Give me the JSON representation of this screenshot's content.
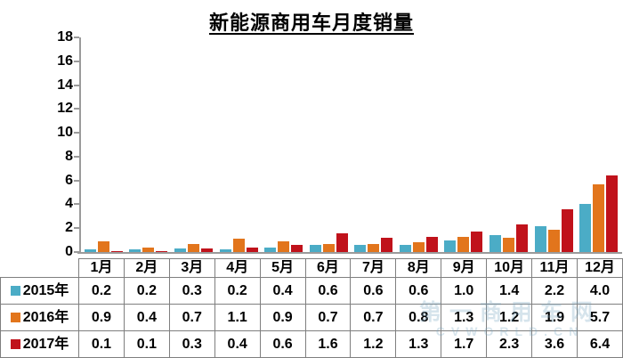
{
  "chart_data": {
    "type": "bar",
    "title": "新能源商用车月度销量",
    "categories": [
      "1月",
      "2月",
      "3月",
      "4月",
      "5月",
      "6月",
      "7月",
      "8月",
      "9月",
      "10月",
      "11月",
      "12月"
    ],
    "series": [
      {
        "name": "2015年",
        "color": "#4BACC6",
        "values": [
          0.2,
          0.2,
          0.3,
          0.2,
          0.4,
          0.6,
          0.6,
          0.6,
          1.0,
          1.4,
          2.2,
          4.0
        ]
      },
      {
        "name": "2016年",
        "color": "#E2751C",
        "values": [
          0.9,
          0.4,
          0.7,
          1.1,
          0.9,
          0.7,
          0.7,
          0.8,
          1.3,
          1.2,
          1.9,
          5.7
        ]
      },
      {
        "name": "2017年",
        "color": "#C0121B",
        "values": [
          0.1,
          0.1,
          0.3,
          0.4,
          0.6,
          1.6,
          1.2,
          1.3,
          1.7,
          2.3,
          3.6,
          6.4
        ]
      }
    ],
    "ylim": [
      0,
      18
    ],
    "ytick_step": 2,
    "grid": false,
    "legend_position": "table-left-column",
    "value_format_decimals": 1
  },
  "watermark": {
    "text": "第一商用车网",
    "subtext": "cvworld.cn"
  },
  "colors": {
    "axis": "#9b9b9b",
    "table_border": "#7f7f7f",
    "background": "#ffffff",
    "text": "#000000"
  }
}
